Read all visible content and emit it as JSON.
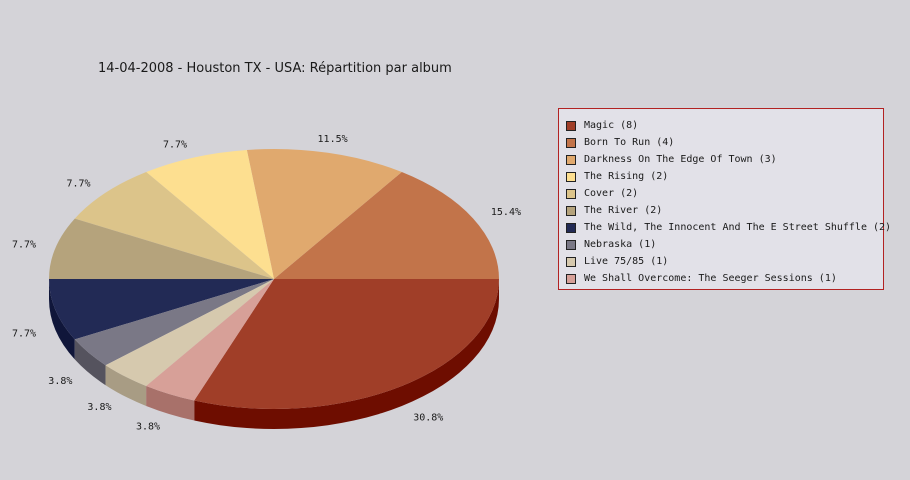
{
  "title": "14-04-2008 - Houston TX - USA:  Répartition par album",
  "chart_data": {
    "type": "pie",
    "title": "14-04-2008 - Houston TX - USA:  Répartition par album",
    "legend_position": "right",
    "slices": [
      {
        "label": "Magic (8)",
        "name": "Magic",
        "value": 8,
        "percent_label": "30.8%",
        "color": "#a03e28",
        "side_color": "#6e0d00"
      },
      {
        "label": "Born To Run (4)",
        "name": "Born To Run",
        "value": 4,
        "percent_label": "15.4%",
        "color": "#c2744a",
        "side_color": "#8f3c14"
      },
      {
        "label": "Darkness On The Edge Of Town (3)",
        "name": "Darkness On The Edge Of Town",
        "value": 3,
        "percent_label": "11.5%",
        "color": "#e0a96e",
        "side_color": "#a8743e"
      },
      {
        "label": "The Rising (2)",
        "name": "The Rising",
        "value": 2,
        "percent_label": "7.7%",
        "color": "#fddf90",
        "side_color": "#c8a860"
      },
      {
        "label": "Cover (2)",
        "name": "Cover",
        "value": 2,
        "percent_label": "7.7%",
        "color": "#dcc48a",
        "side_color": "#a89058"
      },
      {
        "label": "The River (2)",
        "name": "The River",
        "value": 2,
        "percent_label": "7.7%",
        "color": "#b5a37c",
        "side_color": "#85734e"
      },
      {
        "label": "The Wild, The Innocent And The E Street Shuffle (2)",
        "name": "The Wild, The Innocent And The E Street Shuffle",
        "value": 2,
        "percent_label": "7.7%",
        "color": "#222a55",
        "side_color": "#10163a"
      },
      {
        "label": "Nebraska (1)",
        "name": "Nebraska",
        "value": 1,
        "percent_label": "3.8%",
        "color": "#7a7886",
        "side_color": "#55535e"
      },
      {
        "label": "Live 75/85 (1)",
        "name": "Live 75/85",
        "value": 1,
        "percent_label": "3.8%",
        "color": "#d6c9ae",
        "side_color": "#a89c84"
      },
      {
        "label": "We Shall Overcome: The Seeger Sessions (1)",
        "name": "We Shall Overcome: The Seeger Sessions",
        "value": 1,
        "percent_label": "3.8%",
        "color": "#d7a098",
        "side_color": "#a8716a"
      }
    ]
  }
}
